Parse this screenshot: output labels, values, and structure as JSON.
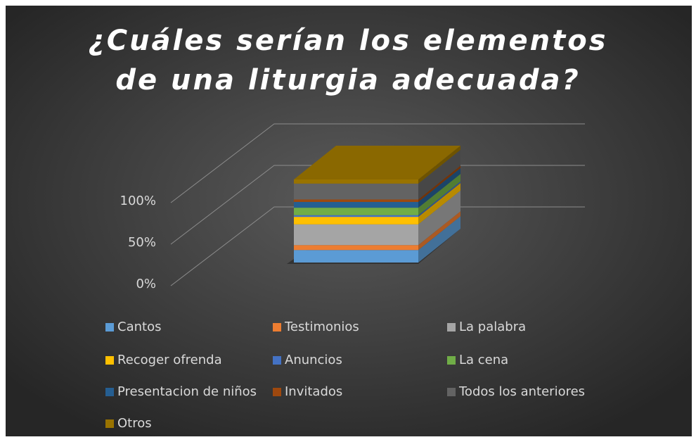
{
  "chart_data": {
    "type": "bar3d_stacked100",
    "title": "¿Cuáles serían los elementos de una liturgia adecuada?",
    "categories": [
      null
    ],
    "ylim": [
      0,
      100
    ],
    "yticks": [
      {
        "value": 0,
        "label": "0%"
      },
      {
        "value": 50,
        "label": "50%"
      },
      {
        "value": 100,
        "label": "100%"
      }
    ],
    "grid": true,
    "legend": "bottom",
    "series": [
      {
        "name": "Cantos",
        "color": "#5b9bd5",
        "values": [
          15
        ]
      },
      {
        "name": "Testimonios",
        "color": "#ed7d31",
        "values": [
          6
        ]
      },
      {
        "name": "La palabra",
        "color": "#a5a5a5",
        "values": [
          25
        ]
      },
      {
        "name": "Recoger ofrenda",
        "color": "#ffc000",
        "values": [
          9
        ]
      },
      {
        "name": "Anuncios",
        "color": "#4472c4",
        "values": [
          2
        ]
      },
      {
        "name": "La cena",
        "color": "#70ad47",
        "values": [
          9
        ]
      },
      {
        "name": "Presentacion de niños",
        "color": "#255e91",
        "values": [
          7
        ]
      },
      {
        "name": "Invitados",
        "color": "#9e480e",
        "values": [
          3
        ]
      },
      {
        "name": "Todos los anteriores",
        "color": "#636363",
        "values": [
          19
        ]
      },
      {
        "name": "Otros",
        "color": "#997300",
        "values": [
          5
        ]
      }
    ]
  }
}
